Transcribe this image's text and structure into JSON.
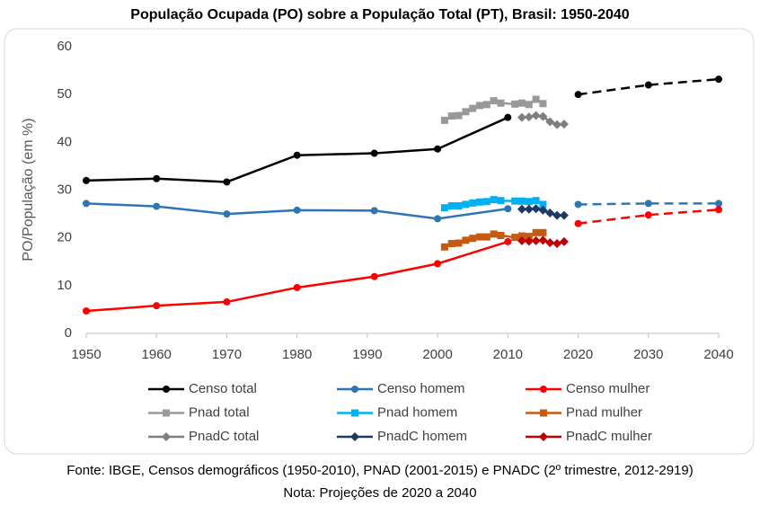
{
  "chart_data": {
    "type": "line",
    "title": "População Ocupada (PO) sobre a População Total (PT), Brasil: 1950-2040",
    "y_label": "PO/População (em %)",
    "xlim": [
      1950,
      2040
    ],
    "xticks": [
      1950,
      1960,
      1970,
      1980,
      1990,
      2000,
      2010,
      2020,
      2030,
      2040
    ],
    "ylim": [
      0,
      60
    ],
    "yticks": [
      0,
      10,
      20,
      30,
      40,
      50,
      60
    ],
    "grid": false,
    "series": [
      {
        "name": "Censo total",
        "color": "#000000",
        "marker": "circle",
        "x": [
          1950,
          1960,
          1970,
          1980,
          1991,
          2000,
          2010
        ],
        "values": [
          32.0,
          32.4,
          31.7,
          37.3,
          37.7,
          38.6,
          45.2
        ],
        "projection_x": [
          2020,
          2030,
          2040
        ],
        "projection_values": [
          50.0,
          52.0,
          53.2
        ]
      },
      {
        "name": "Censo homem",
        "color": "#2e75b6",
        "marker": "circle",
        "x": [
          1950,
          1960,
          1970,
          1980,
          1991,
          2000,
          2010
        ],
        "values": [
          27.2,
          26.6,
          25.0,
          25.8,
          25.7,
          24.0,
          26.1
        ],
        "projection_x": [
          2020,
          2030,
          2040
        ],
        "projection_values": [
          27.0,
          27.2,
          27.2
        ]
      },
      {
        "name": "Censo mulher",
        "color": "#ff0000",
        "marker": "circle",
        "x": [
          1950,
          1960,
          1970,
          1980,
          1991,
          2000,
          2010
        ],
        "values": [
          4.7,
          5.8,
          6.6,
          9.6,
          11.9,
          14.6,
          19.2
        ],
        "projection_x": [
          2020,
          2030,
          2040
        ],
        "projection_values": [
          23.0,
          24.8,
          25.9
        ]
      },
      {
        "name": "Pnad total",
        "color": "#999999",
        "marker": "square",
        "x": [
          2001,
          2002,
          2003,
          2004,
          2005,
          2006,
          2007,
          2008,
          2009,
          2011,
          2012,
          2013,
          2014,
          2015
        ],
        "values": [
          44.6,
          45.5,
          45.6,
          46.4,
          47.1,
          47.7,
          47.9,
          48.7,
          48.2,
          48.0,
          48.2,
          47.9,
          49.0,
          48.1
        ]
      },
      {
        "name": "Pnad homem",
        "color": "#00b0f0",
        "marker": "square",
        "x": [
          2001,
          2002,
          2003,
          2004,
          2005,
          2006,
          2007,
          2008,
          2009,
          2011,
          2012,
          2013,
          2014,
          2015
        ],
        "values": [
          26.3,
          26.7,
          26.7,
          27.0,
          27.3,
          27.5,
          27.6,
          28.0,
          27.8,
          27.7,
          27.7,
          27.6,
          27.8,
          27.0
        ]
      },
      {
        "name": "Pnad mulher",
        "color": "#c55a11",
        "marker": "square",
        "x": [
          2001,
          2002,
          2003,
          2004,
          2005,
          2006,
          2007,
          2008,
          2009,
          2011,
          2012,
          2013,
          2014,
          2015
        ],
        "values": [
          18.1,
          18.8,
          18.9,
          19.5,
          19.9,
          20.2,
          20.2,
          20.8,
          20.5,
          20.1,
          20.4,
          20.3,
          21.1,
          21.1
        ]
      },
      {
        "name": "PnadC total",
        "color": "#7f7f7f",
        "marker": "diamond",
        "x": [
          2012,
          2013,
          2014,
          2015,
          2016,
          2017,
          2018
        ],
        "values": [
          45.2,
          45.3,
          45.6,
          45.4,
          44.3,
          43.7,
          43.8
        ]
      },
      {
        "name": "PnadC homem",
        "color": "#1f3864",
        "marker": "diamond",
        "x": [
          2012,
          2013,
          2014,
          2015,
          2016,
          2017,
          2018
        ],
        "values": [
          26.0,
          26.0,
          26.1,
          25.8,
          25.2,
          24.7,
          24.7
        ]
      },
      {
        "name": "PnadC mulher",
        "color": "#c00000",
        "marker": "diamond",
        "x": [
          2012,
          2013,
          2014,
          2015,
          2016,
          2017,
          2018
        ],
        "values": [
          19.4,
          19.3,
          19.4,
          19.5,
          19.0,
          18.8,
          19.2
        ]
      }
    ],
    "source": "Fonte: IBGE, Censos demográficos (1950-2010), PNAD (2001-2015) e PNADC (2º trimestre, 2012-2919)",
    "note": "Nota: Projeções de 2020 a 2040"
  }
}
